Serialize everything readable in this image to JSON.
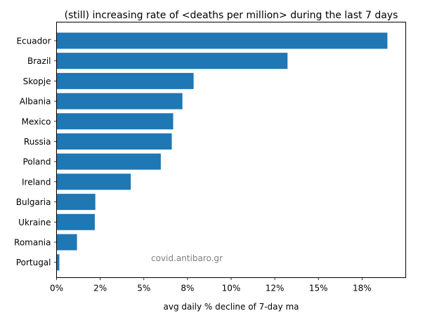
{
  "chart_data": {
    "type": "bar",
    "orientation": "horizontal",
    "title": "(still) increasing rate of <deaths per million> during the last 7 days",
    "xlabel": "avg daily % decline of 7-day ma",
    "ylabel": "",
    "xlim": [
      0,
      0.2
    ],
    "grid": false,
    "categories": [
      "Ecuador",
      "Brazil",
      "Skopje",
      "Albania",
      "Mexico",
      "Russia",
      "Poland",
      "Ireland",
      "Bulgaria",
      "Ukraine",
      "Romania",
      "Portugal"
    ],
    "values": [
      0.1895,
      0.1323,
      0.0785,
      0.0721,
      0.0668,
      0.066,
      0.0597,
      0.0425,
      0.0222,
      0.0219,
      0.0117,
      0.0016
    ],
    "ticks": [
      {
        "value": 0,
        "label": "0%"
      },
      {
        "value": 0.025,
        "label": "2%"
      },
      {
        "value": 0.05,
        "label": "5%"
      },
      {
        "value": 0.075,
        "label": "8%"
      },
      {
        "value": 0.1,
        "label": "10%"
      },
      {
        "value": 0.125,
        "label": "12%"
      },
      {
        "value": 0.15,
        "label": "15%"
      },
      {
        "value": 0.175,
        "label": "18%"
      }
    ],
    "bar_color": "#1f77b4",
    "watermark": "covid.antibaro.gr"
  }
}
